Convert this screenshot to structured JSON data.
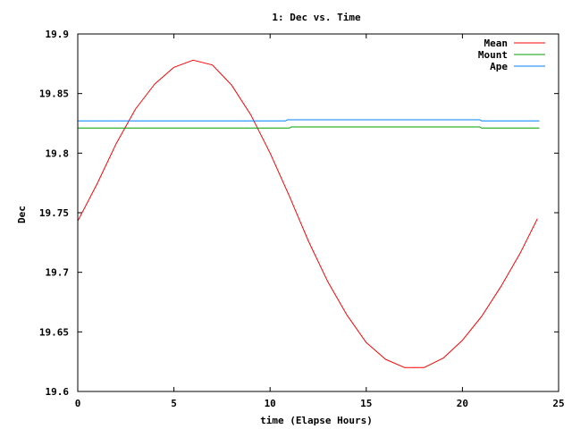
{
  "chart_data": {
    "type": "line",
    "title": "1: Dec vs. Time",
    "xlabel": "time (Elapse Hours)",
    "ylabel": "Dec",
    "xlim": [
      0,
      25
    ],
    "ylim": [
      19.6,
      19.9
    ],
    "x_ticks": [
      0,
      5,
      10,
      15,
      20,
      25
    ],
    "y_ticks": [
      19.6,
      19.65,
      19.7,
      19.75,
      19.8,
      19.85,
      19.9
    ],
    "x_tick_labels": [
      "0",
      "5",
      "10",
      "15",
      "20",
      "25"
    ],
    "y_tick_labels": [
      "19.6",
      "19.65",
      "19.7",
      "19.75",
      "19.8",
      "19.85",
      "19.9"
    ],
    "grid": false,
    "legend_position": "top-right",
    "series": [
      {
        "name": "Mean",
        "color": "#ff0000",
        "x": [
          0,
          1,
          2,
          3,
          4,
          5,
          6,
          7,
          8,
          9,
          10,
          11,
          12,
          13,
          14,
          15,
          16,
          17,
          18,
          19,
          20,
          21,
          22,
          23,
          23.9
        ],
        "y": [
          19.743,
          19.774,
          19.808,
          19.837,
          19.858,
          19.872,
          19.878,
          19.874,
          19.857,
          19.832,
          19.8,
          19.764,
          19.726,
          19.692,
          19.664,
          19.641,
          19.627,
          19.62,
          19.62,
          19.628,
          19.643,
          19.663,
          19.688,
          19.716,
          19.745
        ]
      },
      {
        "name": "Mount",
        "color": "#00a000",
        "x": [
          0,
          11,
          11.1,
          20.9,
          21,
          24
        ],
        "y": [
          19.821,
          19.821,
          19.822,
          19.822,
          19.821,
          19.821
        ]
      },
      {
        "name": "Ape",
        "color": "#0080ff",
        "x": [
          0,
          10.8,
          10.9,
          20.9,
          21,
          24
        ],
        "y": [
          19.827,
          19.827,
          19.828,
          19.828,
          19.827,
          19.827
        ]
      }
    ]
  }
}
